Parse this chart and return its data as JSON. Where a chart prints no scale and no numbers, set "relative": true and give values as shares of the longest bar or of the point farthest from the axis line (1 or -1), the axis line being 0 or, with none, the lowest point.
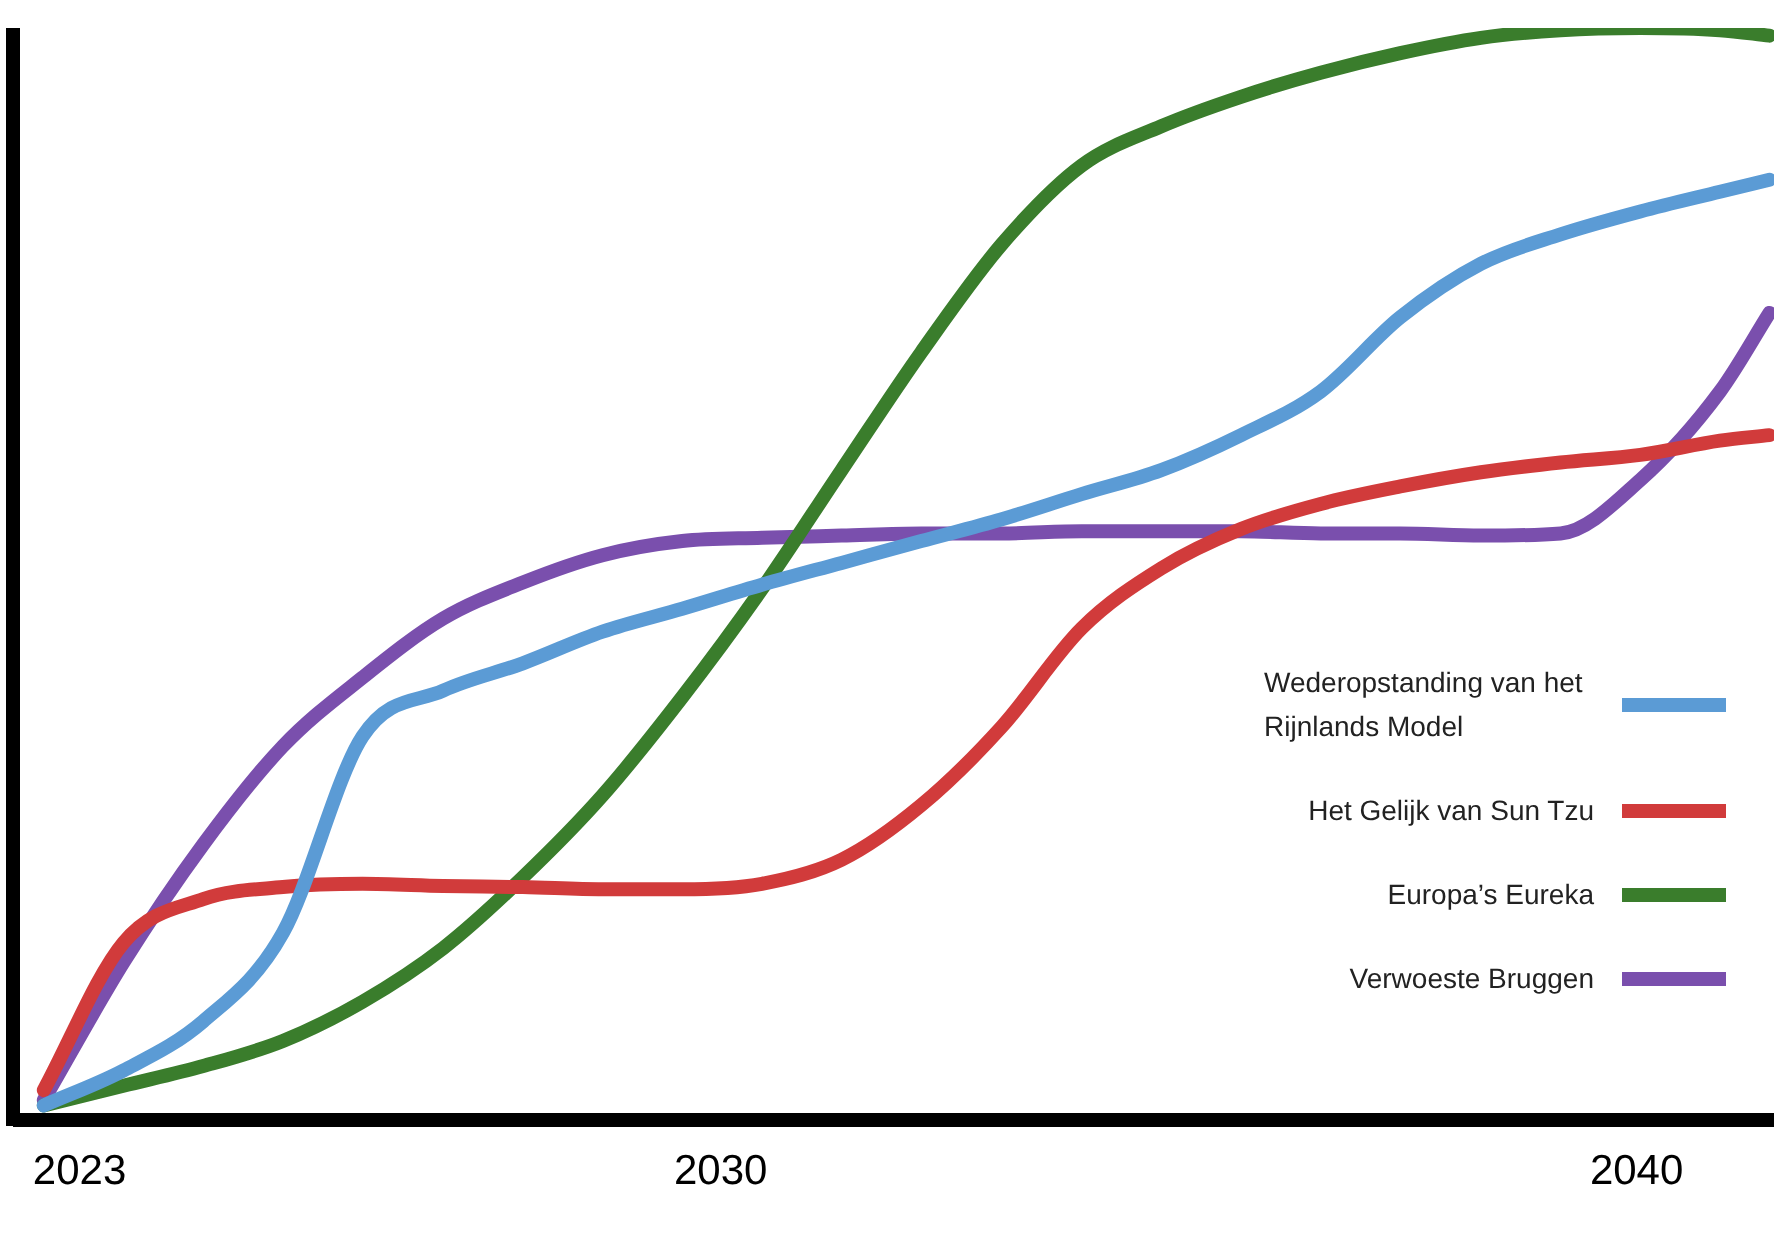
{
  "chart_data": {
    "type": "line",
    "relative": true,
    "tick_labels": "x",
    "grid": false,
    "legend": "right",
    "marker": "none",
    "line_style": "solid",
    "x": [
      2022.61,
      2023.48,
      2024.35,
      2025.22,
      2026.09,
      2026.97,
      2027.84,
      2028.71,
      2029.58,
      2030.45,
      2031.32,
      2032.19,
      2033.07,
      2033.94,
      2034.81,
      2035.68,
      2036.55,
      2037.42,
      2038.3,
      2039.17,
      2040.04,
      2040.91,
      2041.45
    ],
    "xlim": [
      2022.35,
      2041.5
    ],
    "xticks": [
      2023,
      2030,
      2040
    ],
    "series": [
      {
        "name": "Wederopstanding van het Rijnlands Model",
        "color": "#5b9bd5",
        "values": [
          0.013,
          0.045,
          0.09,
          0.171,
          0.351,
          0.393,
          0.418,
          0.447,
          0.468,
          0.49,
          0.51,
          0.53,
          0.55,
          0.573,
          0.595,
          0.627,
          0.667,
          0.735,
          0.784,
          0.811,
          0.832,
          0.85,
          0.861
        ]
      },
      {
        "name": "Het Gelijk van Sun Tzu",
        "color": "#d13b3b",
        "values": [
          0.027,
          0.162,
          0.202,
          0.213,
          0.216,
          0.214,
          0.213,
          0.211,
          0.211,
          0.216,
          0.238,
          0.288,
          0.36,
          0.45,
          0.505,
          0.541,
          0.564,
          0.58,
          0.593,
          0.602,
          0.609,
          0.622,
          0.627
        ]
      },
      {
        "name": "Europa’s Eureka",
        "color": "#3a7d2c",
        "values": [
          0.013,
          0.031,
          0.049,
          0.072,
          0.108,
          0.157,
          0.222,
          0.297,
          0.387,
          0.486,
          0.595,
          0.703,
          0.802,
          0.874,
          0.91,
          0.937,
          0.959,
          0.977,
          0.991,
          0.998,
          1,
          0.998,
          0.993
        ]
      },
      {
        "name": "Verwoeste Bruggen",
        "color": "#7a4fad",
        "values": [
          0.018,
          0.144,
          0.252,
          0.342,
          0.405,
          0.459,
          0.492,
          0.517,
          0.53,
          0.533,
          0.535,
          0.537,
          0.537,
          0.539,
          0.539,
          0.539,
          0.537,
          0.537,
          0.535,
          0.537,
          0.586,
          0.667,
          0.739
        ]
      }
    ]
  }
}
